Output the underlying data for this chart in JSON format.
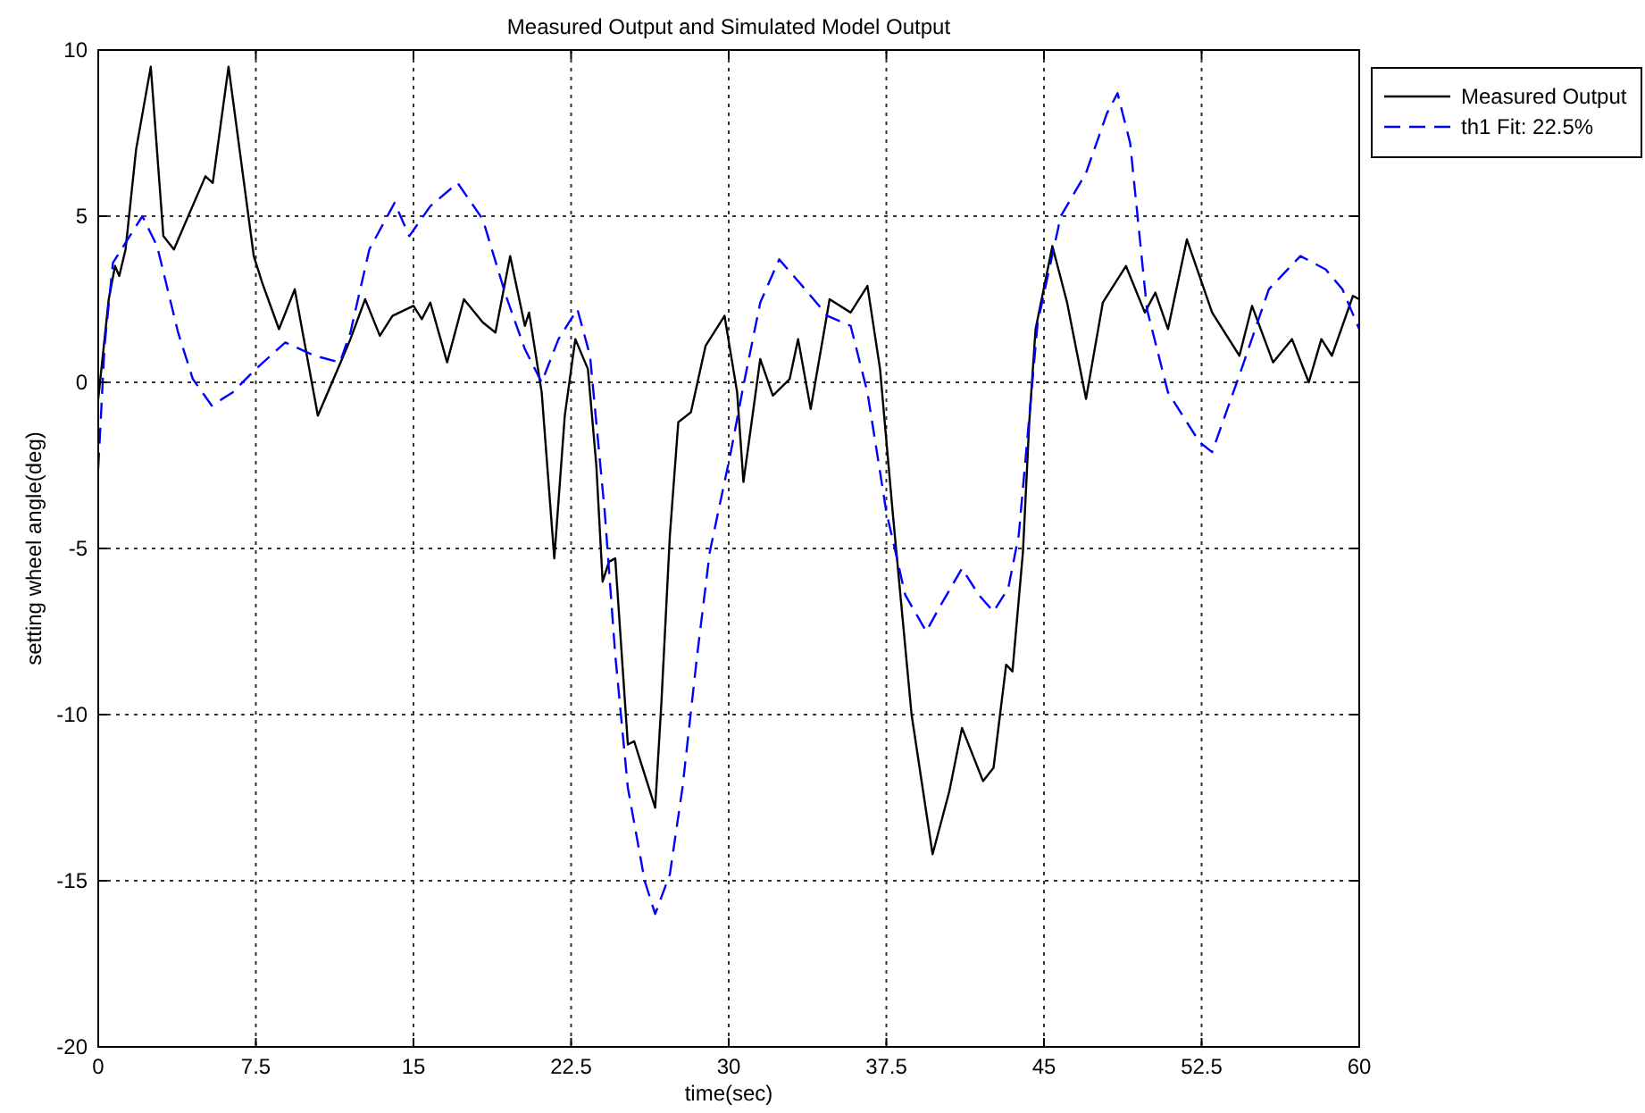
{
  "chart_data": {
    "type": "line",
    "title": "Measured Output and Simulated Model Output",
    "xlabel": "time(sec)",
    "ylabel": "setting wheel angle(deg)",
    "xlim": [
      0,
      60
    ],
    "xticks": [
      0,
      7.5,
      15,
      22.5,
      30,
      37.5,
      45,
      52.5,
      60
    ],
    "ylim": [
      -20,
      10
    ],
    "yticks": [
      -20,
      -15,
      -10,
      -5,
      0,
      5,
      10
    ],
    "grid": true,
    "legend": "top right",
    "marker": "none",
    "series": [
      {
        "name": "Measured Output",
        "color": "#000000",
        "line_style": "solid",
        "x": [
          0,
          0.5,
          0.8,
          1.0,
          1.3,
          1.8,
          2.5,
          3.1,
          3.6,
          5.1,
          5.45,
          6.2,
          7.4,
          7.8,
          8.6,
          9.35,
          10.45,
          11.6,
          12.0,
          12.7,
          13.4,
          14.0,
          15.0,
          15.4,
          15.8,
          16.6,
          17.4,
          18.3,
          18.9,
          19.6,
          20.3,
          20.5,
          21.1,
          21.7,
          22.2,
          22.7,
          23.3,
          23.7,
          24.0,
          24.3,
          24.6,
          25.2,
          25.5,
          25.9,
          26.5,
          26.8,
          27.2,
          27.6,
          28.2,
          28.9,
          29.8,
          30.4,
          30.7,
          31.5,
          32.1,
          32.9,
          33.3,
          33.9,
          34.8,
          35.8,
          36.6,
          37.2,
          37.8,
          38.7,
          39.7,
          40.5,
          41.1,
          42.1,
          42.6,
          43.2,
          43.5,
          44.0,
          44.3,
          44.6,
          45.4,
          46.1,
          47.0,
          47.8,
          48.9,
          49.8,
          50.3,
          50.9,
          51.8,
          53.0,
          54.3,
          54.9,
          55.9,
          56.8,
          57.6,
          58.2,
          58.7,
          59.7,
          60
        ],
        "values": [
          -0.5,
          2.5,
          3.5,
          3.2,
          4.0,
          7.0,
          9.5,
          4.4,
          4.0,
          6.2,
          6.0,
          9.5,
          3.8,
          3.0,
          1.6,
          2.8,
          -1.0,
          0.7,
          1.3,
          2.5,
          1.4,
          2.0,
          2.3,
          1.9,
          2.4,
          0.6,
          2.5,
          1.8,
          1.5,
          3.8,
          1.7,
          2.1,
          -0.3,
          -5.3,
          -1.0,
          1.3,
          0.4,
          -2.5,
          -6.0,
          -5.4,
          -5.3,
          -10.9,
          -10.8,
          -11.6,
          -12.8,
          -9.6,
          -4.6,
          -1.2,
          -0.9,
          1.1,
          2.0,
          -0.3,
          -3.0,
          0.7,
          -0.4,
          0.1,
          1.3,
          -0.8,
          2.5,
          2.1,
          2.9,
          0.4,
          -3.9,
          -10.0,
          -14.2,
          -12.3,
          -10.4,
          -12.0,
          -11.6,
          -8.5,
          -8.7,
          -5.1,
          -1.2,
          1.6,
          4.1,
          2.4,
          -0.5,
          2.4,
          3.5,
          2.1,
          2.7,
          1.6,
          4.3,
          2.1,
          0.8,
          2.3,
          0.6,
          1.3,
          0.0,
          1.3,
          0.8,
          2.6,
          2.5
        ]
      },
      {
        "name": "th1 Fit: 22.5%",
        "color": "#0000ff",
        "line_style": "dashed",
        "x": [
          0,
          0.3,
          0.7,
          2.1,
          2.8,
          3.8,
          4.5,
          5.4,
          6.4,
          7.5,
          8.9,
          10.3,
          11.5,
          12.0,
          12.9,
          14.1,
          14.8,
          15.8,
          17.1,
          18.3,
          19.4,
          20.3,
          21.1,
          21.9,
          22.8,
          23.4,
          24.1,
          24.6,
          25.2,
          26.0,
          26.5,
          27.2,
          27.8,
          28.5,
          29.1,
          30.1,
          30.7,
          31.5,
          32.4,
          33.5,
          34.7,
          35.8,
          36.6,
          37.5,
          38.4,
          39.4,
          40.0,
          41.1,
          41.9,
          42.6,
          43.3,
          43.8,
          44.7,
          45.8,
          47.0,
          48.0,
          48.5,
          49.1,
          49.9,
          50.9,
          52.4,
          53.0,
          54.4,
          55.7,
          57.2,
          58.4,
          59.2,
          60
        ],
        "values": [
          -2.6,
          1.1,
          3.6,
          5.0,
          4.1,
          1.5,
          0.1,
          -0.7,
          -0.3,
          0.4,
          1.2,
          0.8,
          0.6,
          1.5,
          4.0,
          5.4,
          4.4,
          5.3,
          6.0,
          4.9,
          2.6,
          1.0,
          0.0,
          1.3,
          2.2,
          0.8,
          -3.9,
          -8.2,
          -12.2,
          -15.0,
          -16.0,
          -14.8,
          -12.2,
          -8.2,
          -5.1,
          -2.1,
          -0.1,
          2.4,
          3.7,
          2.9,
          2.0,
          1.7,
          -0.3,
          -3.9,
          -6.4,
          -7.5,
          -6.8,
          -5.6,
          -6.4,
          -6.9,
          -6.2,
          -4.6,
          1.8,
          5.0,
          6.3,
          8.1,
          8.7,
          7.2,
          2.2,
          -0.3,
          -1.8,
          -2.1,
          0.4,
          2.8,
          3.8,
          3.4,
          2.8,
          1.6
        ]
      }
    ]
  }
}
